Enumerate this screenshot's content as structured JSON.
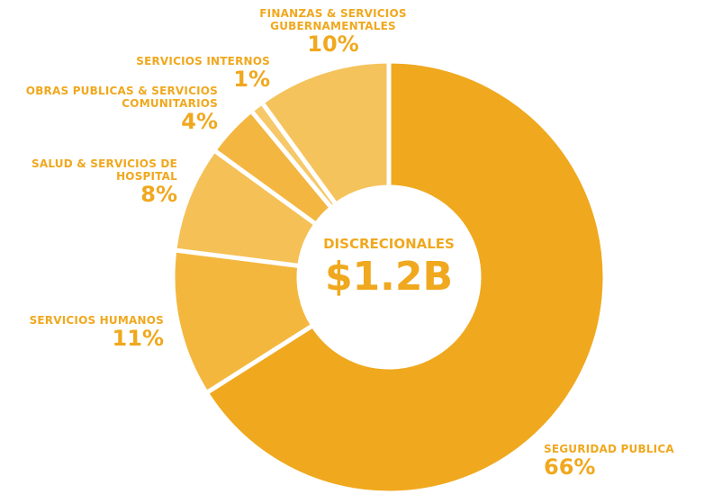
{
  "chart_data": {
    "type": "donut",
    "center_title": "DISCRECIONALES",
    "center_value": "$1.2B",
    "categories": [
      "SEGURIDAD PUBLICA",
      "SERVICIOS HUMANOS",
      "SALUD & SERVICIOS DE HOSPITAL",
      "OBRAS PUBLICAS & SERVICIOS COMUNITARIOS",
      "SERVICIOS INTERNOS",
      "FINANZAS & SERVICIOS GUBERNAMENTALES"
    ],
    "values": [
      66,
      11,
      8,
      4,
      1,
      10
    ],
    "value_labels": [
      "66%",
      "11%",
      "8%",
      "4%",
      "1%",
      "10%"
    ],
    "colors": [
      "#f0a81e",
      "#f4b73e",
      "#f5c055",
      "#f3b641",
      "#f6c868",
      "#f5c35c"
    ]
  }
}
